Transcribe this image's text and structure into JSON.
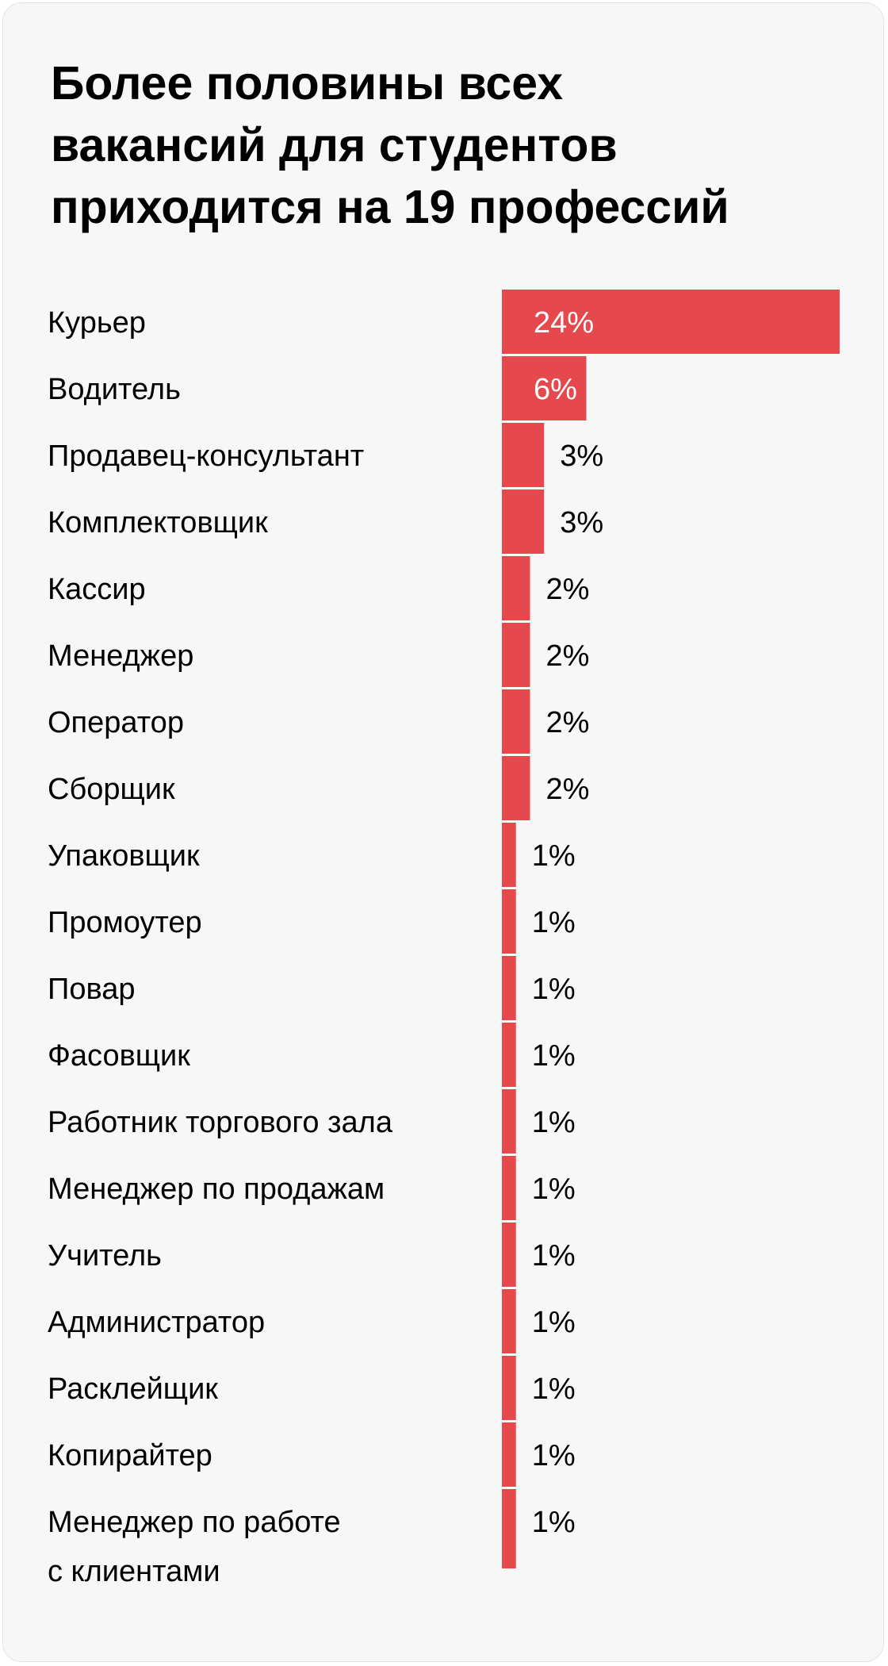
{
  "title": "Более половины всех\nвакансий для студентов\nприходится на 19 профессий",
  "colors": {
    "bar": "#e5484d",
    "background": "#f7f7f7",
    "text": "#000000",
    "label_inside": "#ffffff"
  },
  "chart_data": {
    "type": "bar",
    "orientation": "horizontal",
    "title": "Более половины всех вакансий для студентов приходится на 19 профессий",
    "categories": [
      "Курьер",
      "Водитель",
      "Продавец-консультант",
      "Комплектовщик",
      "Кассир",
      "Менеджер",
      "Оператор",
      "Сборщик",
      "Упаковщик",
      "Промоутер",
      "Повар",
      "Фасовщик",
      "Работник торгового зала",
      "Менеджер по продажам",
      "Учитель",
      "Администратор",
      "Расклейщик",
      "Копирайтер",
      "Менеджер по работе\nс клиентами"
    ],
    "values": [
      24,
      6,
      3,
      3,
      2,
      2,
      2,
      2,
      1,
      1,
      1,
      1,
      1,
      1,
      1,
      1,
      1,
      1,
      1
    ],
    "value_labels": [
      "24%",
      "6%",
      "3%",
      "3%",
      "2%",
      "2%",
      "2%",
      "2%",
      "1%",
      "1%",
      "1%",
      "1%",
      "1%",
      "1%",
      "1%",
      "1%",
      "1%",
      "1%",
      "1%"
    ],
    "unit": "%",
    "xlim": [
      0,
      24
    ],
    "grid": false,
    "legend": "none"
  }
}
